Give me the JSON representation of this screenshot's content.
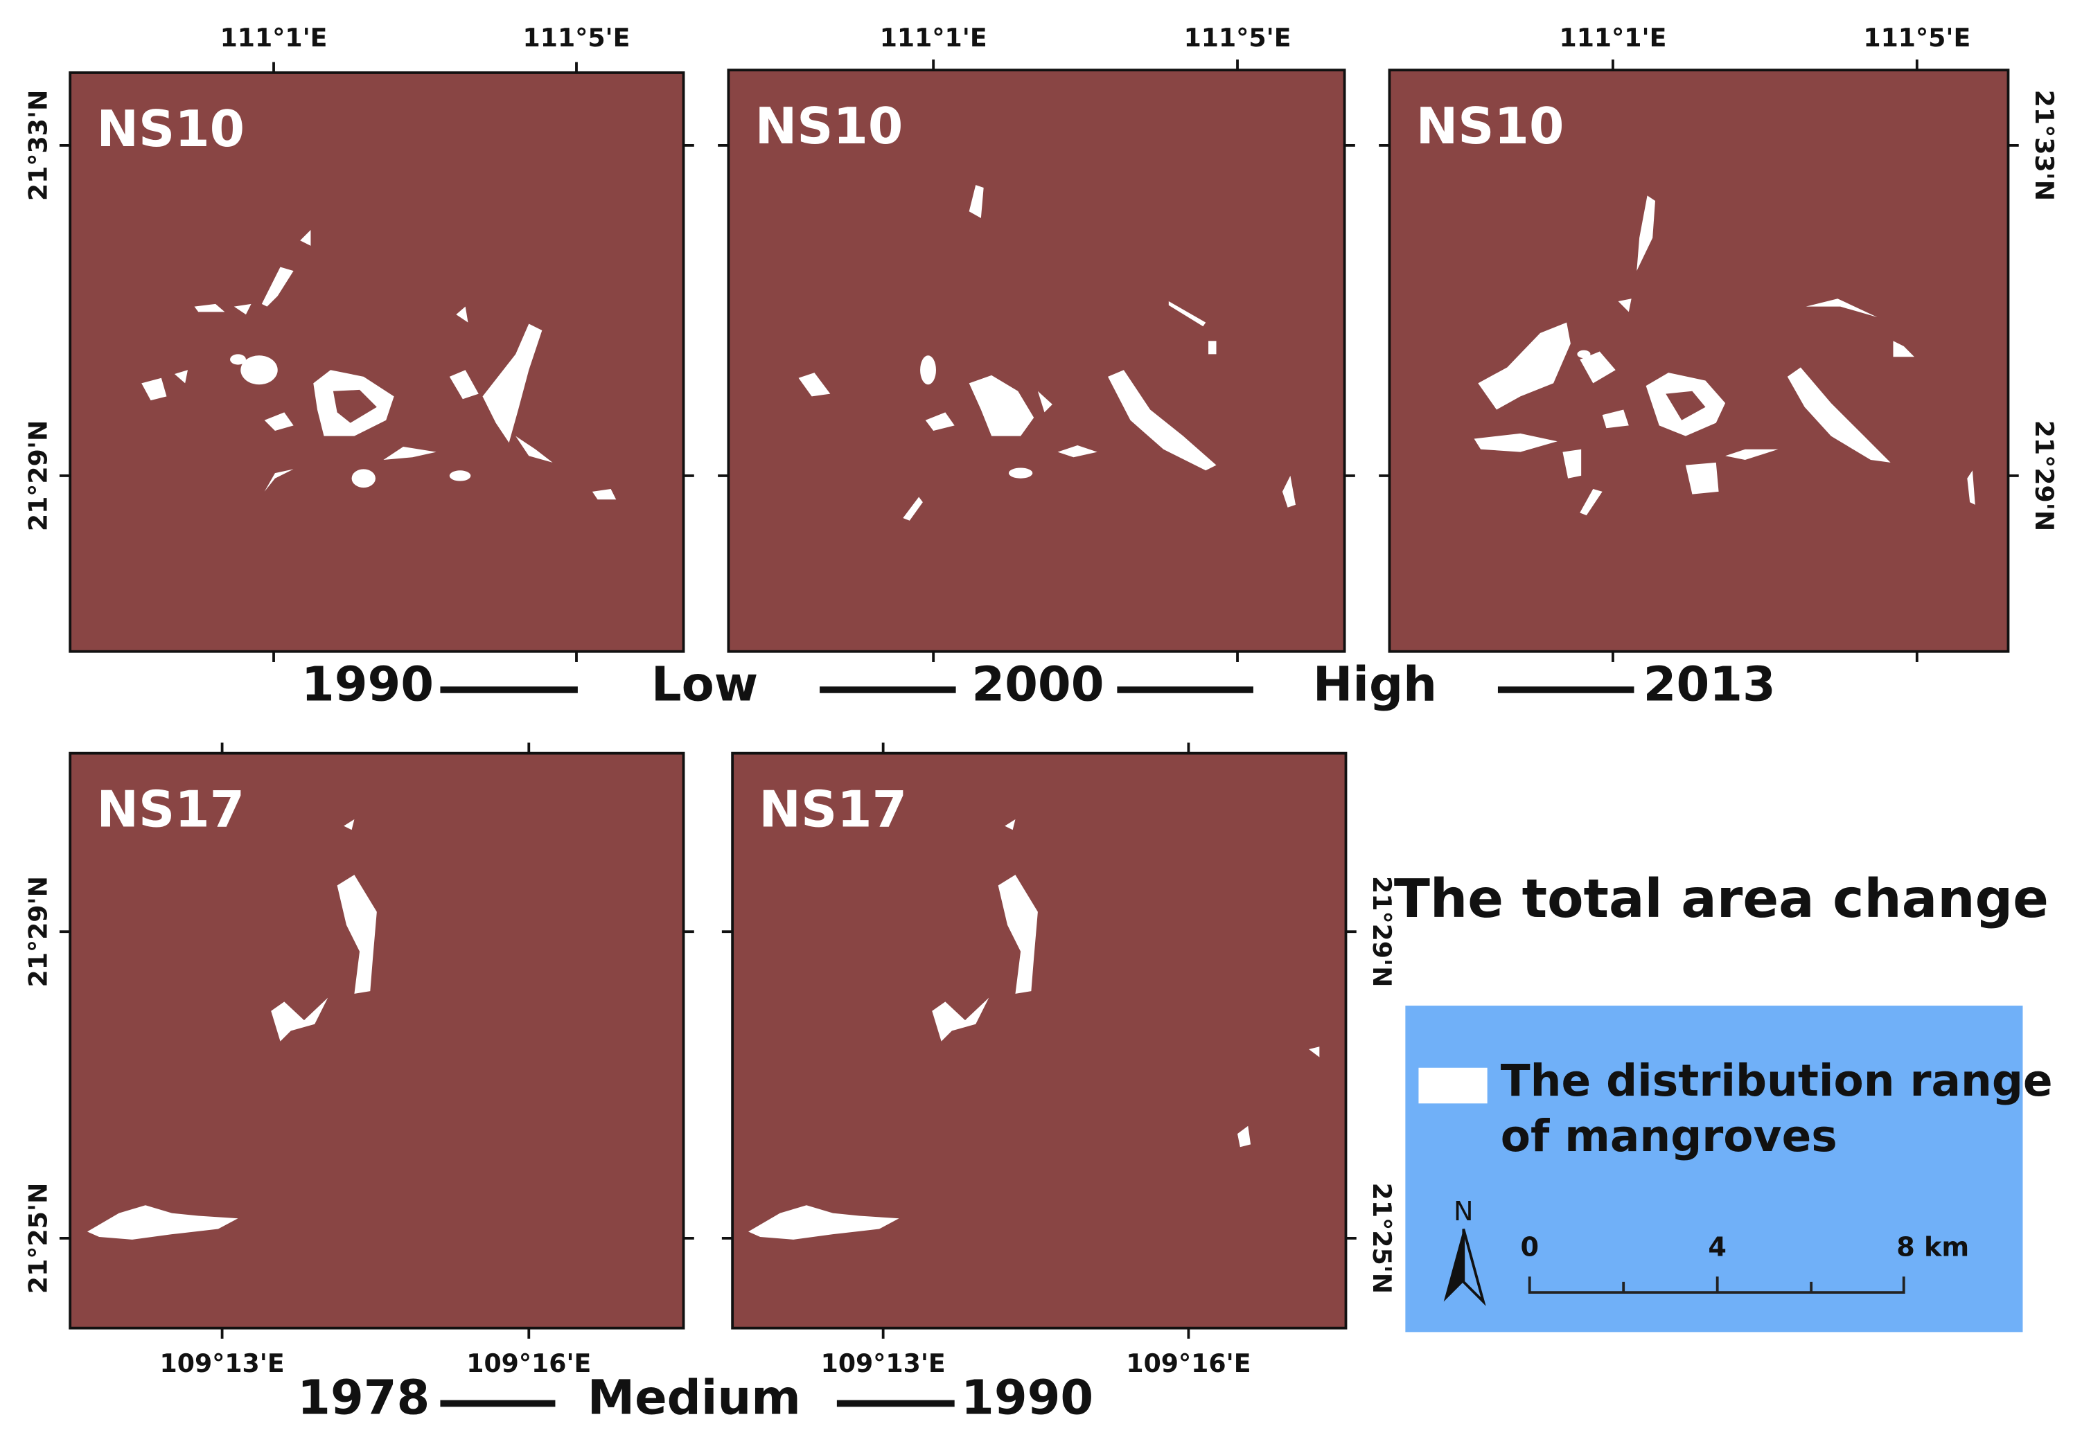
{
  "panels": [
    {
      "label": "NS10"
    },
    {
      "label": "NS10"
    },
    {
      "label": "NS10"
    },
    {
      "label": "NS17"
    },
    {
      "label": "NS17"
    }
  ],
  "top_axes": {
    "lon": [
      "111°1'E",
      "111°5'E"
    ],
    "lat": [
      "21°33'N",
      "21°29'N"
    ]
  },
  "bottom_axes": {
    "lon": [
      "109°13'E",
      "109°16'E"
    ],
    "lat": [
      "21°29'N",
      "21°25'N"
    ]
  },
  "timeline_top": [
    "1990",
    "Low",
    "2000",
    "High",
    "2013"
  ],
  "timeline_bottom": [
    "1978",
    "Medium",
    "1990"
  ],
  "title": "The total area change",
  "legend": {
    "entry": [
      "The distribution range",
      "of mangroves"
    ],
    "north": "N",
    "scale": [
      "0",
      "4",
      "8 km"
    ]
  }
}
